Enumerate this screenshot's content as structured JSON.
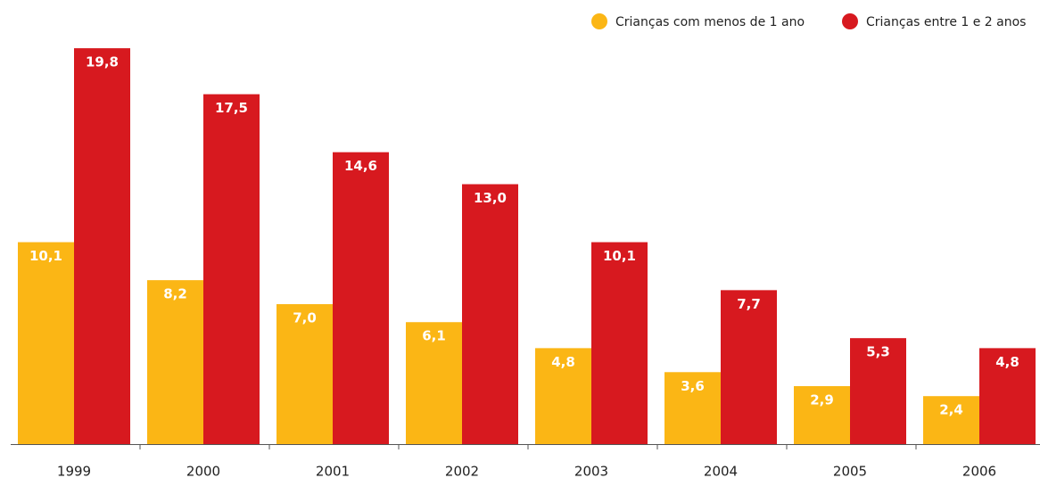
{
  "chart_data": {
    "type": "bar",
    "categories": [
      "1999",
      "2000",
      "2001",
      "2002",
      "2003",
      "2004",
      "2005",
      "2006"
    ],
    "series": [
      {
        "name": "Crianças com menos de 1 ano",
        "color": "#fbb615",
        "values": [
          10.1,
          8.2,
          7.0,
          6.1,
          4.8,
          3.6,
          2.9,
          2.4
        ],
        "value_labels": [
          "10,1",
          "8,2",
          "7,0",
          "6,1",
          "4,8",
          "3,6",
          "2,9",
          "2,4"
        ]
      },
      {
        "name": "Crianças entre 1 e 2 anos",
        "color": "#d7191f",
        "values": [
          19.8,
          17.5,
          14.6,
          13.0,
          10.1,
          7.7,
          5.3,
          4.8
        ],
        "value_labels": [
          "19,8",
          "17,5",
          "14,6",
          "13,0",
          "10,1",
          "7,7",
          "5,3",
          "4,8"
        ]
      }
    ],
    "legend": "top-right"
  }
}
